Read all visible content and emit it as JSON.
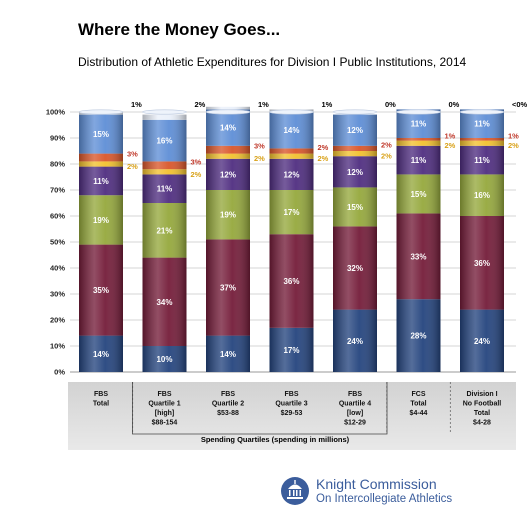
{
  "header": {
    "title": "Where the Money Goes...",
    "subtitle": "Distribution of Athletic Expenditures for Division I Public Institutions, 2014"
  },
  "chart_data": {
    "type": "bar",
    "stacked": true,
    "ylim": [
      0,
      100
    ],
    "yticks": [
      "0%",
      "10%",
      "20%",
      "30%",
      "40%",
      "50%",
      "60%",
      "70%",
      "80%",
      "90%",
      "100%"
    ],
    "grid": true,
    "legend": "none",
    "xlabel": "Spending Quartiles (spending in millions)",
    "categories": [
      [
        "FBS",
        "Total"
      ],
      [
        "FBS",
        "Quartile 1",
        "[high]",
        "$88-154"
      ],
      [
        "FBS",
        "Quartile 2",
        "$53-88"
      ],
      [
        "FBS",
        "Quartile 3",
        "$29-53"
      ],
      [
        "FBS",
        "Quartile 4",
        "[low]",
        "$12-29"
      ],
      [
        "FCS",
        "Total",
        "$4-44"
      ],
      [
        "Division I",
        "No Football",
        "Total",
        "$4-28"
      ]
    ],
    "series": [
      {
        "values": [
          14,
          10,
          14,
          17,
          24,
          28,
          24
        ],
        "labels": [
          "14%",
          "10%",
          "14%",
          "17%",
          "24%",
          "28%",
          "24%"
        ],
        "color": "#24447e",
        "label_color": "#ffffff"
      },
      {
        "values": [
          35,
          34,
          37,
          36,
          32,
          33,
          36
        ],
        "labels": [
          "35%",
          "34%",
          "37%",
          "36%",
          "32%",
          "33%",
          "36%"
        ],
        "color": "#741c39",
        "label_color": "#ffffff"
      },
      {
        "values": [
          19,
          21,
          19,
          17,
          15,
          15,
          16
        ],
        "labels": [
          "19%",
          "21%",
          "19%",
          "17%",
          "15%",
          "15%",
          "16%"
        ],
        "color": "#95a83c",
        "label_color": "#ffffff"
      },
      {
        "values": [
          11,
          11,
          12,
          12,
          12,
          11,
          11
        ],
        "labels": [
          "11%",
          "11%",
          "12%",
          "12%",
          "12%",
          "11%",
          "11%"
        ],
        "color": "#4f2d80",
        "label_color": "#ffffff"
      },
      {
        "values": [
          2,
          2,
          2,
          2,
          2,
          2,
          2
        ],
        "labels": [
          "2%",
          "2%",
          "2%",
          "2%",
          "2%",
          "2%",
          "2%"
        ],
        "color": "#f2c12e",
        "label_color": "#d9a21a"
      },
      {
        "values": [
          3,
          3,
          3,
          2,
          2,
          1,
          1
        ],
        "labels": [
          "3%",
          "3%",
          "3%",
          "2%",
          "2%",
          "1%",
          "1%"
        ],
        "color": "#d9562a",
        "label_color": "#c0392b"
      },
      {
        "values": [
          15,
          16,
          14,
          14,
          12,
          11,
          11
        ],
        "labels": [
          "15%",
          "16%",
          "14%",
          "14%",
          "12%",
          "11%",
          "11%"
        ],
        "color": "#5e8ed6",
        "label_color": "#ffffff"
      },
      {
        "values": [
          1,
          2,
          1,
          1,
          0,
          0,
          0
        ],
        "labels": [
          "1%",
          "2%",
          "1%",
          "1%",
          "0%",
          "0%",
          "<0%"
        ],
        "color": "#eaf0fa",
        "label_color": "#000000"
      }
    ]
  },
  "logo": {
    "line1": "Knight Commission",
    "line2": "On Intercollegiate Athletics",
    "color": "#3b5d9c"
  }
}
